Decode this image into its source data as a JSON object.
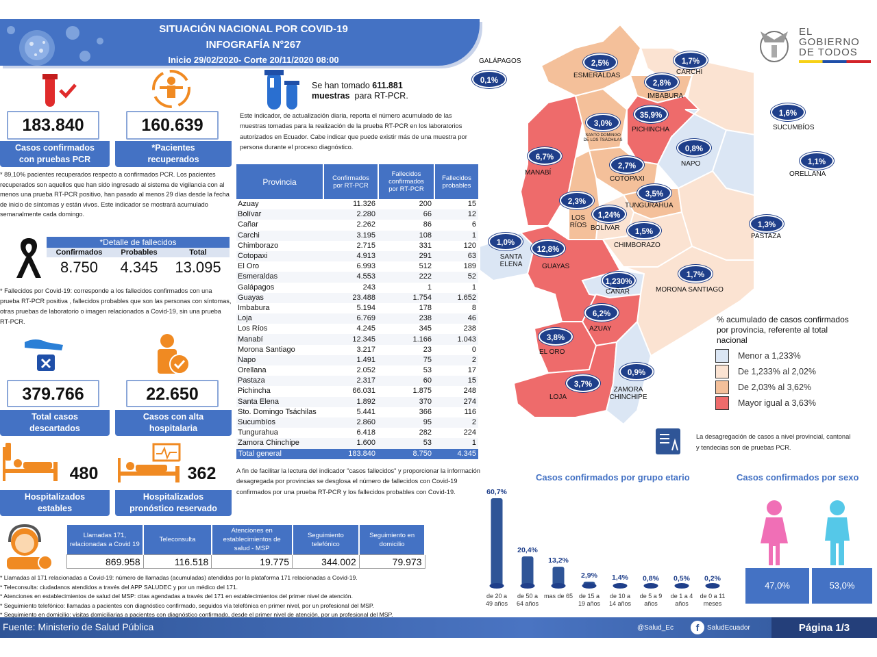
{
  "header": {
    "title1": "SITUACIÓN NACIONAL POR  COVID-19",
    "title2": "INFOGRAFÍA N°267",
    "subtitle": "Inicio 29/02/2020- Corte 20/11/2020 08:00"
  },
  "logo": {
    "line1": "EL",
    "line2": "GOBIERNO",
    "line3": "DE TODOS"
  },
  "kpis": {
    "confirmed": {
      "value": "183.840",
      "label": "Casos confirmados con pruebas PCR"
    },
    "recovered": {
      "value": "160.639",
      "label": "*Pacientes recuperados"
    },
    "recovered_note": "* 89,10% pacientes recuperados respecto a confirmados PCR. Los pacientes recuperados son aquellos que han sido ingresado al sistema de vigilancia con al menos una prueba RT-PCR positivo, han pasado al menos 29 días desde la fecha de inicio de síntomas y están vivos. Este indicador se mostrará acumulado semanalmente cada domingo.",
    "deaths": {
      "title": "*Detalle de fallecidos",
      "confirmed_label": "Confirmados",
      "probable_label": "Probables",
      "total_label": "Total",
      "confirmed": "8.750",
      "probable": "4.345",
      "total": "13.095"
    },
    "deaths_note": "* Fallecidos por Covid-19: corresponde a los fallecidos confirmados con una prueba RT-PCR positiva , fallecidos probables que son las personas con síntomas, otras pruebas de laboratorio o imagen relacionados a Covid-19, sin una prueba RT-PCR.",
    "discarded": {
      "value": "379.766",
      "label": "Total casos descartados"
    },
    "discharged": {
      "value": "22.650",
      "label": "Casos con alta hospitalaria"
    },
    "hosp_stable": {
      "value": "480",
      "label": "Hospitalizados estables"
    },
    "hosp_reserved": {
      "value": "362",
      "label": "Hospitalizados pronóstico reservado"
    }
  },
  "samples": {
    "text1": "Se han tomado",
    "value": "611.881",
    "text2": "muestras",
    "text3": "para RT-PCR.",
    "note": "Este indicador, de actualización diaria, reporta el número acumulado de las muestras tomadas para la realización de la prueba RT-PCR en los laboratorios autorizados en Ecuador. Cabe indicar que puede existir más de una muestra por persona durante el proceso diagnóstico."
  },
  "province_table": {
    "headers": [
      "Provincia",
      "Confirmados por RT-PCR",
      "Fallecidos confirmados por RT-PCR",
      "Fallecidos probables"
    ],
    "rows": [
      [
        "Azuay",
        "11.326",
        "200",
        "15"
      ],
      [
        "Bolívar",
        "2.280",
        "66",
        "12"
      ],
      [
        "Cañar",
        "2.262",
        "86",
        "6"
      ],
      [
        "Carchi",
        "3.195",
        "108",
        "1"
      ],
      [
        "Chimborazo",
        "2.715",
        "331",
        "120"
      ],
      [
        "Cotopaxi",
        "4.913",
        "291",
        "63"
      ],
      [
        "El Oro",
        "6.993",
        "512",
        "189"
      ],
      [
        "Esmeraldas",
        "4.553",
        "222",
        "52"
      ],
      [
        "Galápagos",
        "243",
        "1",
        "1"
      ],
      [
        "Guayas",
        "23.488",
        "1.754",
        "1.652"
      ],
      [
        "Imbabura",
        "5.194",
        "178",
        "8"
      ],
      [
        "Loja",
        "6.769",
        "238",
        "46"
      ],
      [
        "Los Ríos",
        "4.245",
        "345",
        "238"
      ],
      [
        "Manabí",
        "12.345",
        "1.166",
        "1.043"
      ],
      [
        "Morona Santiago",
        "3.217",
        "23",
        "0"
      ],
      [
        "Napo",
        "1.491",
        "75",
        "2"
      ],
      [
        "Orellana",
        "2.052",
        "53",
        "17"
      ],
      [
        "Pastaza",
        "2.317",
        "60",
        "15"
      ],
      [
        "Pichincha",
        "66.031",
        "1.875",
        "248"
      ],
      [
        "Santa Elena",
        "1.892",
        "370",
        "274"
      ],
      [
        "Sto. Domingo Tsáchilas",
        "5.441",
        "366",
        "116"
      ],
      [
        "Sucumbíos",
        "2.860",
        "95",
        "2"
      ],
      [
        "Tungurahua",
        "6.418",
        "282",
        "224"
      ],
      [
        "Zamora Chinchipe",
        "1.600",
        "53",
        "1"
      ]
    ],
    "total": [
      "Total general",
      "183.840",
      "8.750",
      "4.345"
    ],
    "note": "A fin de facilitar la lectura del indicador \"casos fallecidos\" y proporcionar la información desagregada por provincias se desglosa el número de fallecidos con Covid-19 confirmados por una prueba RT-PCR y los fallecidos probables con Covid-19."
  },
  "map": {
    "legend_title": "% acumulado de casos confirmados por provincia, referente al total nacional",
    "legend": [
      {
        "label": "Menor a 1,233%",
        "color": "#dbe6f4"
      },
      {
        "label": "De 1,233% al 2,02%",
        "color": "#fbe3d2"
      },
      {
        "label": "De 2,03% al 3,62%",
        "color": "#f4c09a"
      },
      {
        "label": "Mayor igual a 3,63%",
        "color": "#ee6b6b"
      }
    ],
    "note": "La desagregación de casos a nivel provincial, cantonal y tendecias son  de pruebas PCR.",
    "provinces": [
      {
        "name": "GALÁPAGOS",
        "pct": "0,1%"
      },
      {
        "name": "ESMERALDAS",
        "pct": "2,5%"
      },
      {
        "name": "CARCHI",
        "pct": "1,7%"
      },
      {
        "name": "IMBABURA",
        "pct": "2,8%"
      },
      {
        "name": "PICHINCHA",
        "pct": "35,9%"
      },
      {
        "name": "SANTO DOMINGO DE LOS TSÁCHILAS",
        "pct": "3,0%"
      },
      {
        "name": "SUCUMBÍOS",
        "pct": "1,6%"
      },
      {
        "name": "MANABÍ",
        "pct": "6,7%"
      },
      {
        "name": "NAPO",
        "pct": "0,8%"
      },
      {
        "name": "ORELLANA",
        "pct": "1,1%"
      },
      {
        "name": "COTOPAXI",
        "pct": "2,7%"
      },
      {
        "name": "TUNGURAHUA",
        "pct": "3,5%"
      },
      {
        "name": "LOS RÍOS",
        "pct": "2,3%"
      },
      {
        "name": "BOLÍVAR",
        "pct": "1,24%"
      },
      {
        "name": "PASTAZA",
        "pct": "1,3%"
      },
      {
        "name": "CHIMBORAZO",
        "pct": "1,5%"
      },
      {
        "name": "SANTA ELENA",
        "pct": "1,0%"
      },
      {
        "name": "GUAYAS",
        "pct": "12,8%"
      },
      {
        "name": "CAÑAR",
        "pct": "1,230%"
      },
      {
        "name": "MORONA SANTIAGO",
        "pct": "1,7%"
      },
      {
        "name": "AZUAY",
        "pct": "6,2%"
      },
      {
        "name": "EL ORO",
        "pct": "3,8%"
      },
      {
        "name": "LOJA",
        "pct": "3,7%"
      },
      {
        "name": "ZAMORA CHINCHIPE",
        "pct": "0,9%"
      }
    ]
  },
  "chart_data": [
    {
      "type": "bar",
      "title": "Casos confirmados por grupo etario",
      "categories": [
        "de 20 a 49 años",
        "de 50 a 64 años",
        "mas de 65",
        "de 15 a 19 años",
        "de 10 a 14 años",
        "de 5 a 9 años",
        "de 1 a 4 años",
        "de 0 a 11 meses"
      ],
      "values": [
        60.7,
        20.4,
        13.2,
        2.9,
        1.4,
        0.8,
        0.5,
        0.2
      ],
      "labels": [
        "60,7%",
        "20,4%",
        "13,2%",
        "2,9%",
        "1,4%",
        "0,8%",
        "0,5%",
        "0,2%"
      ],
      "color": "#2f5597"
    },
    {
      "type": "bar",
      "title": "Casos confirmados por sexo",
      "categories": [
        "Mujeres",
        "Hombres"
      ],
      "values": [
        47.0,
        53.0
      ],
      "labels": [
        "47,0%",
        "53,0%"
      ],
      "colors": [
        "#f06fb6",
        "#55c8e8"
      ]
    }
  ],
  "phone": {
    "headers": [
      "Llamadas 171, relacionadas a Covid 19",
      "Teleconsulta",
      "Atenciones en establecimientos de salud - MSP",
      "Seguimiento telefónico",
      "Seguimiento en domicilio"
    ],
    "values": [
      "869.958",
      "116.518",
      "19.775",
      "344.002",
      "79.973"
    ],
    "notes": [
      "* Llamadas al 171 relacionadas a Covid-19: número de llamadas (acumuladas) atendidas por la plataforma 171 relacionadas a Covid-19.",
      "* Teleconsulta: ciudadanos atendidos a través del APP SALUDEC y por un médico del 171.",
      "* Atenciones en establecimientos de salud del MSP: citas agendadas a través del 171 en establecimientos del primer nivel de atención.",
      "* Seguimiento telefónico: llamadas a pacientes con diagnóstico confirmado, seguidos vía telefónica en primer nivel, por un profesional del MSP.",
      "* Seguimiento en domicilio: visitas domiciliarias a pacientes con diagnóstico confirmado, desde el primer nivel de atención, por un profesional del MSP."
    ]
  },
  "footer": {
    "source": "Fuente: Ministerio de Salud Pública",
    "twitter": "@Salud_Ec",
    "facebook": "SaludEcuador",
    "page": "Página 1/3"
  }
}
